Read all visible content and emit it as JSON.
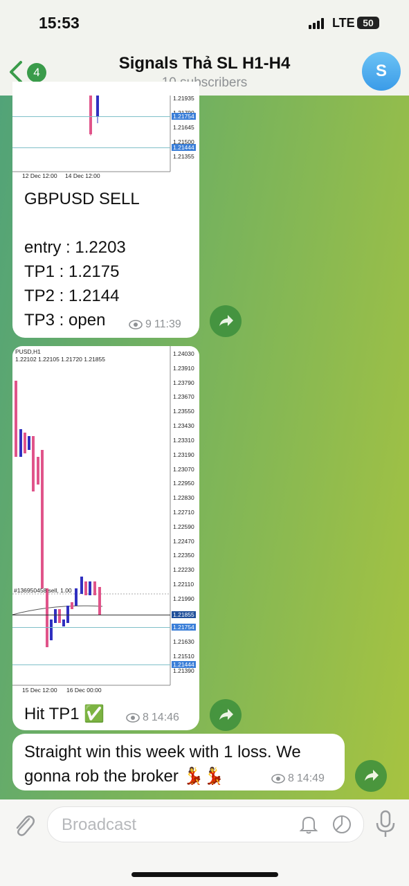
{
  "status_bar": {
    "time": "15:53",
    "network": "LTE",
    "battery": "50"
  },
  "header": {
    "back_badge": "4",
    "title": "Signals Thả SL H1-H4",
    "subtitle": "10 subscribers",
    "avatar": "S"
  },
  "messages": [
    {
      "chart": {
        "axis_labels": [
          "1.21935",
          "1.21790",
          "1.21645",
          "1.21500",
          "1.21355"
        ],
        "line_labels": [
          "1.21754",
          "1.21444"
        ],
        "x_labels": [
          "12 Dec 12:00",
          "14 Dec 12:00"
        ]
      },
      "lines": [
        "GBPUSD SELL",
        "entry : 1.2203",
        "TP1 : 1.2175",
        "TP2 : 1.2144",
        "TP3 : open"
      ],
      "views": "9",
      "time": "11:39"
    },
    {
      "chart": {
        "symbol": "PUSD,H1",
        "ohlc": "1.22102 1.22105 1.21720 1.21855",
        "axis_labels": [
          "1.24030",
          "1.23910",
          "1.23790",
          "1.23670",
          "1.23550",
          "1.23430",
          "1.23310",
          "1.23190",
          "1.23070",
          "1.22950",
          "1.22830",
          "1.22710",
          "1.22590",
          "1.22470",
          "1.22350",
          "1.22230",
          "1.22110",
          "1.21990",
          "1.21630",
          "1.21510",
          "1.21390"
        ],
        "current_price": "1.21855",
        "line_labels": [
          "1.21754",
          "1.21444"
        ],
        "order_label": "#136950458 sell, 1.00",
        "x_labels": [
          "15 Dec 12:00",
          "16 Dec 00:00"
        ]
      },
      "lines": [
        "Hit TP1 ✅"
      ],
      "views": "8",
      "time": "14:46"
    },
    {
      "lines": [
        "Straight win this week with 1 loss. We gonna rob the broker 💃💃"
      ],
      "views": "8",
      "time": "14:49"
    }
  ],
  "composer": {
    "placeholder": "Broadcast"
  }
}
